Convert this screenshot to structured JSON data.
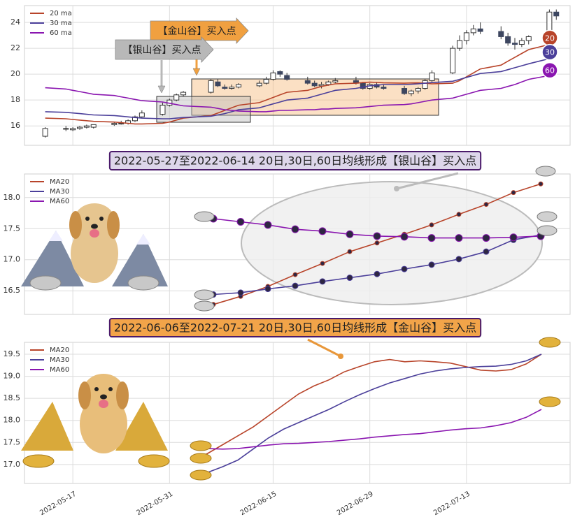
{
  "chart_data": [
    {
      "type": "candlestick",
      "x": [
        "2022-05-13",
        "2022-05-16",
        "2022-05-17",
        "2022-05-18",
        "2022-05-19",
        "2022-05-20",
        "2022-05-23",
        "2022-05-24",
        "2022-05-25",
        "2022-05-26",
        "2022-05-27",
        "2022-05-30",
        "2022-05-31",
        "2022-06-01",
        "2022-06-02",
        "2022-06-06",
        "2022-06-07",
        "2022-06-08",
        "2022-06-09",
        "2022-06-10",
        "2022-06-13",
        "2022-06-14",
        "2022-06-15",
        "2022-06-16",
        "2022-06-17",
        "2022-06-20",
        "2022-06-21",
        "2022-06-22",
        "2022-06-23",
        "2022-06-24",
        "2022-06-27",
        "2022-06-28",
        "2022-06-29",
        "2022-06-30",
        "2022-07-01",
        "2022-07-04",
        "2022-07-05",
        "2022-07-06",
        "2022-07-07",
        "2022-07-08",
        "2022-07-11",
        "2022-07-12",
        "2022-07-13",
        "2022-07-14",
        "2022-07-15",
        "2022-07-18",
        "2022-07-19",
        "2022-07-20",
        "2022-07-21",
        "2022-07-22",
        "2022-07-25",
        "2022-07-26"
      ],
      "open": [
        15.2,
        15.8,
        15.7,
        15.8,
        15.9,
        15.9,
        16.1,
        16.2,
        16.2,
        16.4,
        16.7,
        16.9,
        17.6,
        18.0,
        18.4,
        18.6,
        19.4,
        19.0,
        18.9,
        19.0,
        19.1,
        19.3,
        19.6,
        20.2,
        19.9,
        19.5,
        19.3,
        19.1,
        19.2,
        19.4,
        19.5,
        19.3,
        18.9,
        19.2,
        19.0,
        18.9,
        18.5,
        18.7,
        18.9,
        19.5,
        20.1,
        22.0,
        22.6,
        23.2,
        23.5,
        23.3,
        22.9,
        22.4,
        22.3,
        22.6,
        22.9,
        24.8
      ],
      "high": [
        15.9,
        16.0,
        15.9,
        16.0,
        16.1,
        16.1,
        16.3,
        16.4,
        16.5,
        16.8,
        17.2,
        17.8,
        18.1,
        18.5,
        18.7,
        19.6,
        19.6,
        19.2,
        19.2,
        19.3,
        19.5,
        19.8,
        20.3,
        20.3,
        20.1,
        19.8,
        19.5,
        19.4,
        19.5,
        19.7,
        19.8,
        19.4,
        19.3,
        19.4,
        19.2,
        19.1,
        18.8,
        19.0,
        19.6,
        20.3,
        22.2,
        23.0,
        23.4,
        23.8,
        24.0,
        23.7,
        23.2,
        22.8,
        22.8,
        23.0,
        25.0,
        25.0
      ],
      "low": [
        15.1,
        15.6,
        15.6,
        15.7,
        15.8,
        15.8,
        16.0,
        16.1,
        16.1,
        16.3,
        16.6,
        16.8,
        17.5,
        17.9,
        18.3,
        18.5,
        19.0,
        18.8,
        18.8,
        18.9,
        19.0,
        19.2,
        19.5,
        19.8,
        19.5,
        19.2,
        19.0,
        18.9,
        19.1,
        19.3,
        19.2,
        18.8,
        18.8,
        18.9,
        18.8,
        18.4,
        18.3,
        18.5,
        18.8,
        19.4,
        20.0,
        21.8,
        22.3,
        23.0,
        23.1,
        22.7,
        22.2,
        21.9,
        22.1,
        22.3,
        22.8,
        24.2
      ],
      "close": [
        15.8,
        15.8,
        15.8,
        15.9,
        16.0,
        16.1,
        16.2,
        16.2,
        16.4,
        16.7,
        17.0,
        17.6,
        18.0,
        18.4,
        18.6,
        19.5,
        19.1,
        18.9,
        19.0,
        19.2,
        19.3,
        19.6,
        20.1,
        20.0,
        19.6,
        19.3,
        19.1,
        19.2,
        19.4,
        19.5,
        19.3,
        18.9,
        19.2,
        19.0,
        18.9,
        18.5,
        18.7,
        18.9,
        19.5,
        20.1,
        22.0,
        22.6,
        23.2,
        23.5,
        23.3,
        22.9,
        22.4,
        22.3,
        22.6,
        22.9,
        24.8,
        24.5
      ],
      "up_color": "#ffffff",
      "down_color": "#3d4660",
      "xlim": [
        "2022-05-10",
        "2022-07-28"
      ],
      "xticks": [
        "2022-05-17",
        "2022-05-31",
        "2022-06-15",
        "2022-06-29",
        "2022-07-13"
      ],
      "ylim": [
        14.5,
        25.3
      ],
      "yticks": [
        16,
        18,
        20,
        22,
        24
      ],
      "grid": true,
      "legend": "upper left",
      "series": [
        {
          "name": "20 ma",
          "badge": "20",
          "color": "#b8442a",
          "values": [
            16.6,
            16.55,
            16.5,
            16.45,
            16.4,
            16.35,
            16.3,
            16.25,
            16.2,
            16.15,
            16.15,
            16.2,
            16.3,
            16.45,
            16.6,
            16.8,
            17.0,
            17.2,
            17.4,
            17.6,
            17.8,
            18.0,
            18.2,
            18.4,
            18.6,
            18.75,
            18.9,
            19.05,
            19.15,
            19.25,
            19.3,
            19.35,
            19.38,
            19.36,
            19.33,
            19.3,
            19.32,
            19.33,
            19.3,
            19.25,
            19.3,
            19.5,
            19.8,
            20.1,
            20.4,
            20.7,
            21.0,
            21.3,
            21.6,
            21.9,
            22.3,
            22.8
          ]
        },
        {
          "name": "30 ma",
          "badge": "30",
          "color": "#4b3f9a",
          "values": [
            17.1,
            17.05,
            17.0,
            16.95,
            16.9,
            16.85,
            16.8,
            16.75,
            16.7,
            16.65,
            16.6,
            16.55,
            16.55,
            16.6,
            16.65,
            16.75,
            16.85,
            16.95,
            17.1,
            17.25,
            17.4,
            17.55,
            17.7,
            17.85,
            18.0,
            18.15,
            18.3,
            18.45,
            18.6,
            18.75,
            18.9,
            19.0,
            19.1,
            19.15,
            19.2,
            19.2,
            19.22,
            19.25,
            19.3,
            19.35,
            19.45,
            19.6,
            19.75,
            19.9,
            20.05,
            20.2,
            20.35,
            20.5,
            20.65,
            20.8,
            21.2,
            21.7
          ]
        },
        {
          "name": "60 ma",
          "badge": "60",
          "color": "#8a16b0",
          "values": [
            18.95,
            18.85,
            18.75,
            18.65,
            18.55,
            18.45,
            18.35,
            18.25,
            18.15,
            18.05,
            17.95,
            17.85,
            17.75,
            17.65,
            17.55,
            17.45,
            17.35,
            17.25,
            17.2,
            17.15,
            17.1,
            17.1,
            17.15,
            17.2,
            17.2,
            17.25,
            17.25,
            17.3,
            17.3,
            17.35,
            17.4,
            17.45,
            17.5,
            17.55,
            17.6,
            17.65,
            17.7,
            17.8,
            17.9,
            18.0,
            18.15,
            18.3,
            18.45,
            18.6,
            18.75,
            18.9,
            19.05,
            19.2,
            19.4,
            19.6,
            19.9,
            20.3
          ]
        }
      ],
      "annotations": [
        {
          "text": "【金山谷】买入点",
          "color": "#f0a040"
        },
        {
          "text": "【银山谷】买入点",
          "color": "#b8b8b8"
        }
      ]
    },
    {
      "type": "line",
      "markers": true,
      "title": "2022-05-27至2022-06-14 20日,30日,60日均线形成【银山谷】买入点",
      "categories": [
        null,
        null,
        null,
        null,
        null,
        null,
        null,
        null,
        null,
        null,
        null,
        null,
        null
      ],
      "ylim": [
        16.12,
        18.38
      ],
      "yticks": [
        16.5,
        {
          "value": 17,
          "label": "17.0"
        },
        17.5,
        {
          "value": 18,
          "label": "18.0"
        }
      ],
      "grid": true,
      "legend": "upper left",
      "series": [
        {
          "name": "MA20",
          "color": "#b8442a",
          "values": [
            16.28,
            16.41,
            16.57,
            16.76,
            16.94,
            17.13,
            17.27,
            17.41,
            17.56,
            17.73,
            17.89,
            18.08,
            18.22
          ]
        },
        {
          "name": "MA30",
          "color": "#4b3f9a",
          "values": [
            16.44,
            16.47,
            16.53,
            16.58,
            16.65,
            16.71,
            16.77,
            16.85,
            16.92,
            17.01,
            17.13,
            17.32,
            17.4
          ]
        },
        {
          "name": "MA60",
          "color": "#8a16b0",
          "values": [
            17.66,
            17.61,
            17.56,
            17.49,
            17.46,
            17.41,
            17.38,
            17.37,
            17.35,
            17.35,
            17.35,
            17.36,
            17.38
          ]
        }
      ]
    },
    {
      "type": "line",
      "markers": false,
      "title": "2022-06-06至2022-07-21 20日,30日,60日均线形成【金山谷】买入点",
      "categories": [
        null,
        null,
        null,
        null,
        null,
        null,
        null,
        null,
        null,
        null,
        null,
        null,
        null,
        null,
        null,
        null,
        null,
        null,
        null,
        null,
        null,
        null,
        null,
        null
      ],
      "ylim": [
        16.57,
        19.77
      ],
      "yticks": [
        {
          "value": 17,
          "label": "17.0"
        },
        17.5,
        {
          "value": 18,
          "label": "18.0"
        },
        18.5,
        {
          "value": 19,
          "label": "19.0"
        },
        19.5
      ],
      "grid": true,
      "legend": "upper left",
      "series": [
        {
          "name": "MA20",
          "color": "#b8442a",
          "values": [
            17.1,
            17.25,
            17.45,
            17.65,
            17.85,
            18.1,
            18.35,
            18.6,
            18.78,
            18.92,
            19.1,
            19.22,
            19.33,
            19.38,
            19.33,
            19.35,
            19.33,
            19.3,
            19.22,
            19.14,
            19.12,
            19.15,
            19.28,
            19.5
          ]
        },
        {
          "name": "MA30",
          "color": "#4b3f9a",
          "values": [
            16.72,
            16.82,
            16.95,
            17.1,
            17.35,
            17.6,
            17.8,
            17.95,
            18.1,
            18.25,
            18.42,
            18.58,
            18.72,
            18.85,
            18.95,
            19.05,
            19.12,
            19.17,
            19.2,
            19.22,
            19.23,
            19.27,
            19.35,
            19.5
          ]
        },
        {
          "name": "MA60",
          "color": "#8a16b0",
          "values": [
            17.38,
            17.36,
            17.35,
            17.36,
            17.4,
            17.44,
            17.47,
            17.48,
            17.5,
            17.52,
            17.55,
            17.58,
            17.62,
            17.65,
            17.68,
            17.7,
            17.74,
            17.78,
            17.81,
            17.83,
            17.88,
            17.95,
            18.07,
            18.25
          ]
        }
      ]
    }
  ]
}
